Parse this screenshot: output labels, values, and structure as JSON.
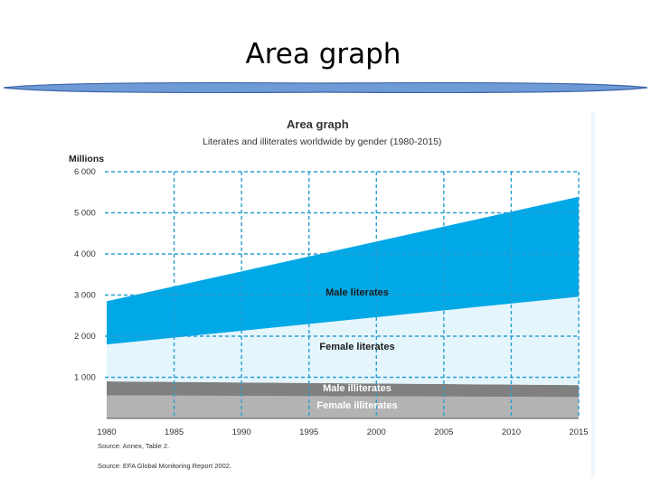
{
  "slide": {
    "title": "Area graph"
  },
  "chart_data": {
    "type": "area",
    "stacked": true,
    "title": "Area graph",
    "subtitle": "Literates and illiterates worldwide by gender (1980-2015)",
    "ylabel": "Millions",
    "xlabel": "",
    "x": [
      1980,
      2015
    ],
    "xticks": [
      "1980",
      "1985",
      "1990",
      "1995",
      "2000",
      "2005",
      "2010",
      "2015"
    ],
    "yticks": [
      "1 000",
      "2 000",
      "3 000",
      "4 000",
      "5 000",
      "6 000"
    ],
    "ylim": [
      0,
      6000
    ],
    "xlim": [
      1980,
      2015
    ],
    "grid": true,
    "series": [
      {
        "name": "Female illiterates",
        "values": [
          560,
          520
        ],
        "color": "#b3b3b3"
      },
      {
        "name": "Male illiterates",
        "values": [
          340,
          290
        ],
        "color": "#808080"
      },
      {
        "name": "Female literates",
        "values": [
          900,
          2150
        ],
        "color": "#e4f5fc"
      },
      {
        "name": "Male literates",
        "values": [
          1050,
          2430
        ],
        "color": "#00a8e6"
      }
    ],
    "sources": [
      "Source: Annex, Table 2.",
      "Source: EFA Global Monitoring Report 2002."
    ]
  }
}
